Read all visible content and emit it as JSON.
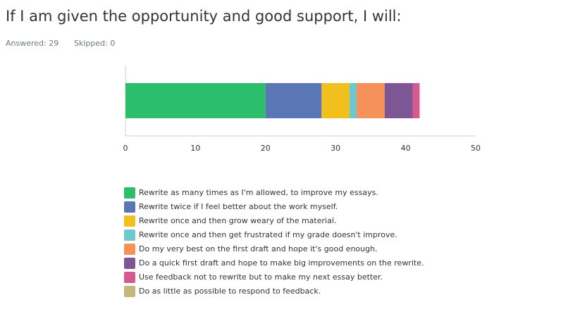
{
  "chart_data": {
    "type": "bar",
    "orientation": "horizontal",
    "stacked": true,
    "title": "If I am given the opportunity and good support, I will:",
    "answered": "Answered: 29",
    "skipped": "Skipped: 0",
    "categories": [
      null
    ],
    "series": [
      {
        "name": "Rewrite as many times as I'm allowed, to improve my essays.",
        "color": "#2dbe6c",
        "values": [
          20
        ]
      },
      {
        "name": "Rewrite twice if I feel better about the work myself.",
        "color": "#5b76b5",
        "values": [
          8
        ]
      },
      {
        "name": "Rewrite once and then grow weary of the material.",
        "color": "#f2c01e",
        "values": [
          4
        ]
      },
      {
        "name": "Rewrite once and then get frustrated if my grade doesn't improve.",
        "color": "#6fc8ce",
        "values": [
          1
        ]
      },
      {
        "name": "Do my very best on the first draft and hope it's good enough.",
        "color": "#f7915a",
        "values": [
          4
        ]
      },
      {
        "name": "Do a quick first draft and hope to make big improvements on the rewrite.",
        "color": "#7d5795",
        "values": [
          4
        ]
      },
      {
        "name": "Use feedback not to rewrite but to make my next essay better.",
        "color": "#d65a8e",
        "values": [
          1
        ]
      },
      {
        "name": "Do as little as possible to respond to feedback.",
        "color": "#c4b87a",
        "values": [
          0
        ]
      }
    ],
    "xlim": [
      0,
      50
    ],
    "xticks": [
      0,
      10,
      20,
      30,
      40,
      50
    ],
    "grid": false
  }
}
